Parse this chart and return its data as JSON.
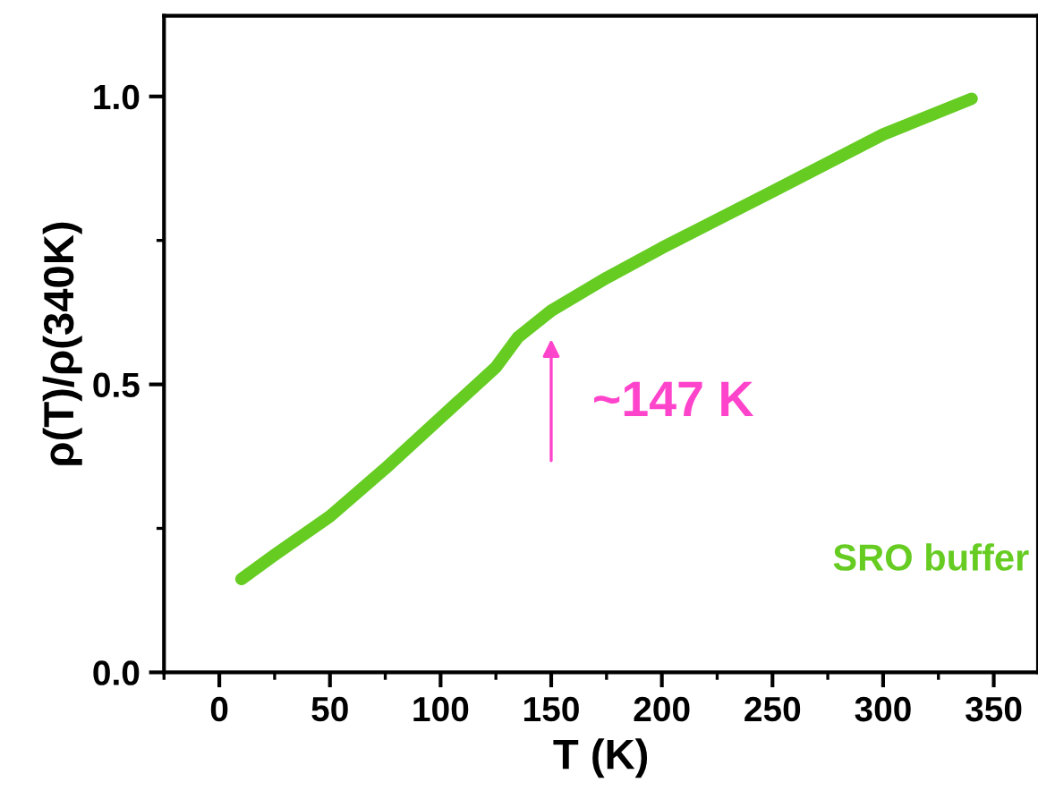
{
  "chart_data": {
    "type": "line",
    "xlabel": "T (K)",
    "ylabel": "ρ(T)/ρ(340K)",
    "xlim": [
      -25,
      370
    ],
    "xticks": [
      0,
      50,
      100,
      150,
      200,
      250,
      300,
      350
    ],
    "ylim": [
      0,
      1.14
    ],
    "yticks": [
      {
        "value": 0,
        "label": "0.0"
      },
      0.5,
      {
        "value": 1,
        "label": "1.0"
      }
    ],
    "grid": false,
    "series": [
      {
        "name": "SRO buffer",
        "color": "#66cc22",
        "x": [
          10,
          25,
          50,
          75,
          100,
          125,
          135,
          150,
          175,
          200,
          250,
          300,
          340
        ],
        "values": [
          0.162,
          0.204,
          0.271,
          0.354,
          0.442,
          0.53,
          0.582,
          0.628,
          0.685,
          0.737,
          0.835,
          0.934,
          0.996
        ]
      }
    ],
    "annotations": [
      "~147 K"
    ]
  }
}
